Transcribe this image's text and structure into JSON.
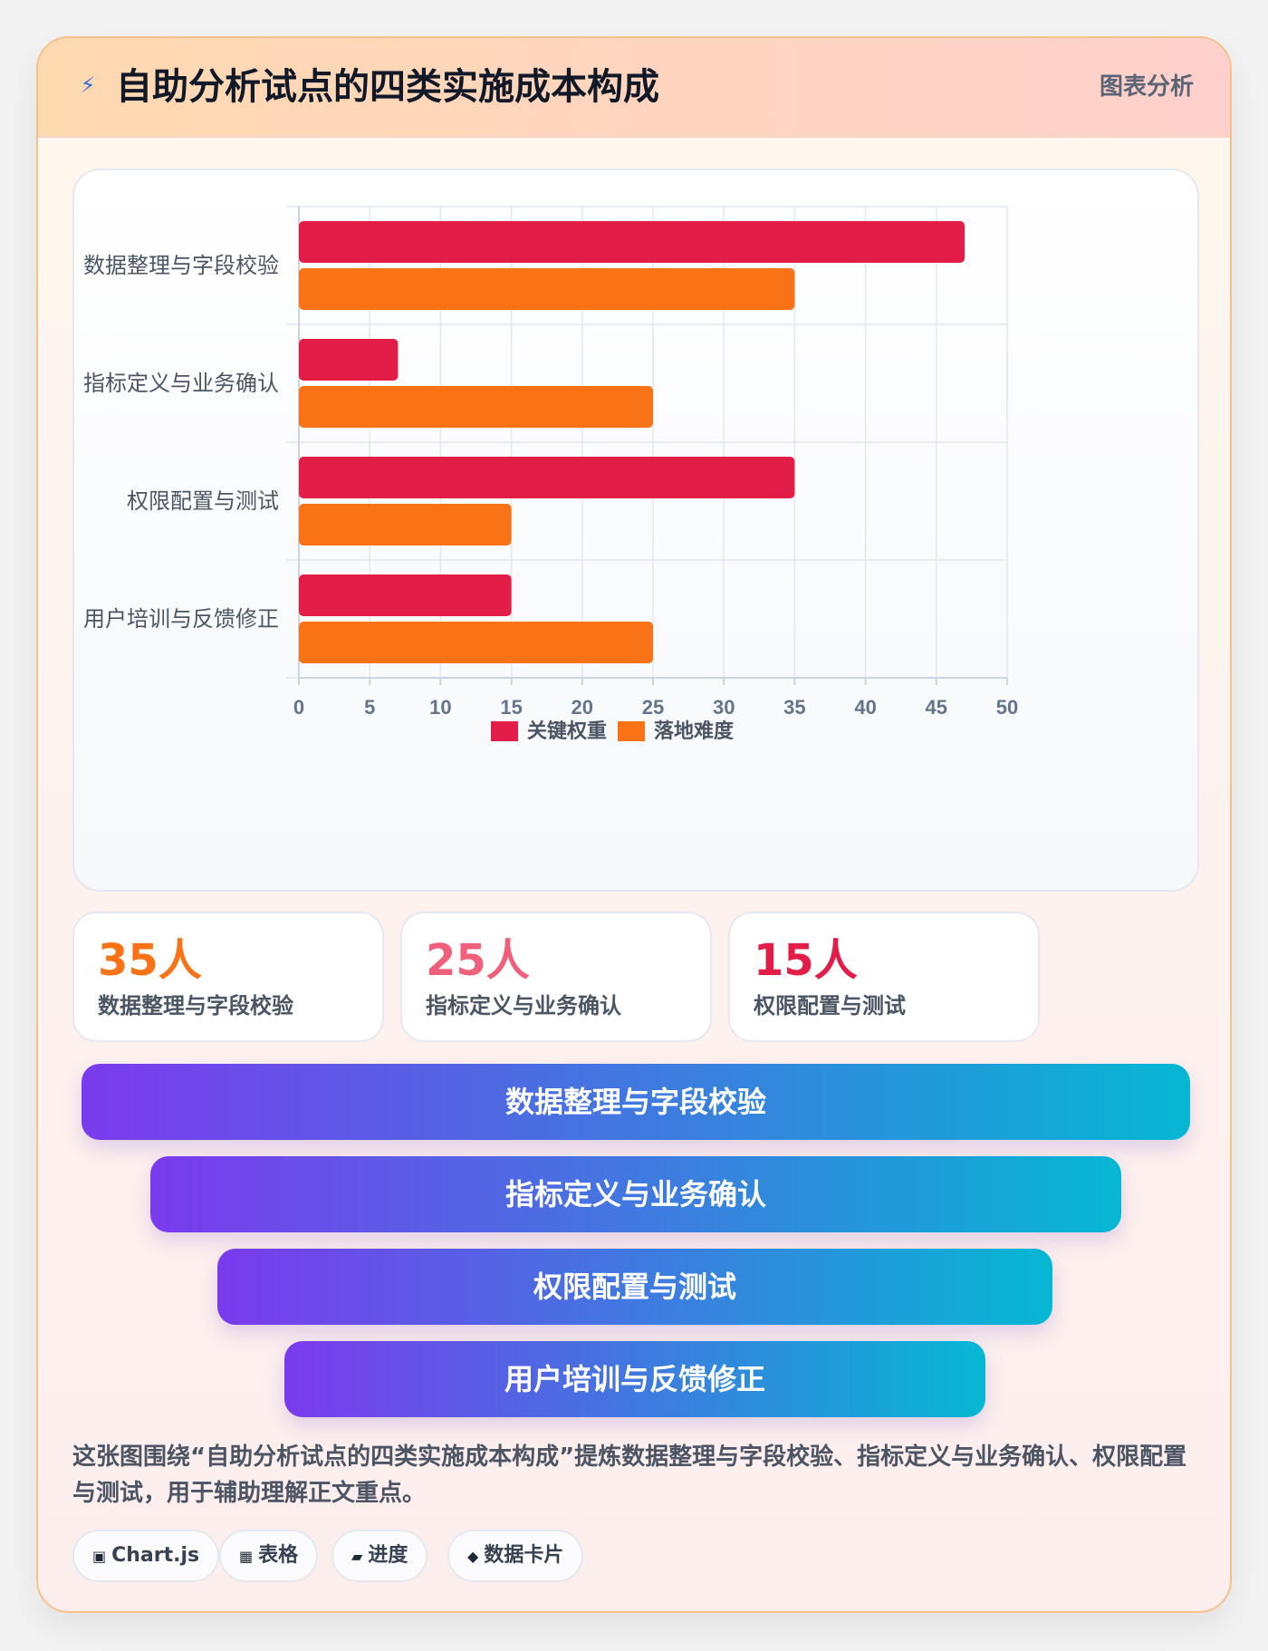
{
  "header": {
    "icon": "lightning-icon",
    "title": "自助分析试点的四类实施成本构成",
    "tag": "图表分析"
  },
  "chart_data": {
    "type": "bar",
    "orientation": "horizontal",
    "categories": [
      "数据整理与字段校验",
      "指标定义与业务确认",
      "权限配置与测试",
      "用户培训与反馈修正"
    ],
    "series": [
      {
        "name": "关键权重",
        "color": "#e11d48",
        "values": [
          47,
          7,
          35,
          15
        ]
      },
      {
        "name": "落地难度",
        "color": "#f97316",
        "values": [
          35,
          25,
          15,
          25
        ]
      }
    ],
    "xlim": [
      0,
      50
    ],
    "xticks": [
      "0",
      "5",
      "10",
      "15",
      "20",
      "25",
      "30",
      "35",
      "40",
      "45",
      "50"
    ],
    "grid": true,
    "legend": "bottom"
  },
  "stats": [
    {
      "value": "35人",
      "label": "数据整理与字段校验",
      "color": "#f97316"
    },
    {
      "value": "25人",
      "label": "指标定义与业务确认",
      "color": "#f0607a"
    },
    {
      "value": "15人",
      "label": "权限配置与测试",
      "color": "#e11d48"
    }
  ],
  "funnel": [
    "数据整理与字段校验",
    "指标定义与业务确认",
    "权限配置与测试",
    "用户培训与反馈修正"
  ],
  "description": "这张图围绕“自助分析试点的四类实施成本构成”提炼数据整理与字段校验、指标定义与业务确认、权限配置与测试，用于辅助理解正文重点。",
  "chips": [
    {
      "icon": "chart-icon",
      "glyph": "▣",
      "label": "Chart.js"
    },
    {
      "icon": "table-icon",
      "glyph": "▦",
      "label": "表格"
    },
    {
      "icon": "progress-icon",
      "glyph": "▰",
      "label": "进度"
    },
    {
      "icon": "diamond-icon",
      "glyph": "◆",
      "label": "数据卡片"
    }
  ]
}
